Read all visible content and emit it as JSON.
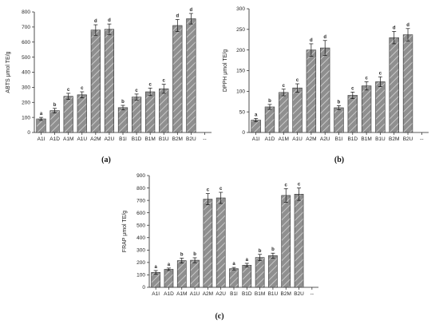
{
  "chart_data": [
    {
      "type": "bar",
      "panel_label": "(a)",
      "ylabel": "ABTS μmol TE/g",
      "xlabel": "",
      "ylim": [
        0,
        800
      ],
      "yticks": [
        0,
        100,
        200,
        300,
        400,
        500,
        600,
        700,
        800
      ],
      "categories": [
        "A1I",
        "A1D",
        "A1M",
        "A1U",
        "A2M",
        "A2U",
        "B1I",
        "B1D",
        "B1M",
        "B1U",
        "B2M",
        "B2U"
      ],
      "trailing_tick_label": "--",
      "values": [
        90,
        145,
        240,
        250,
        680,
        685,
        165,
        235,
        270,
        290,
        710,
        755
      ],
      "errors": [
        10,
        15,
        20,
        20,
        35,
        35,
        15,
        20,
        25,
        30,
        40,
        35
      ],
      "significance": [
        "a",
        "b",
        "c",
        "c",
        "d",
        "d",
        "b",
        "c",
        "c",
        "c",
        "d",
        "d"
      ],
      "grid": false
    },
    {
      "type": "bar",
      "panel_label": "(b)",
      "ylabel": "DPPH μmol TE/g",
      "xlabel": "",
      "ylim": [
        0,
        300
      ],
      "yticks": [
        0,
        50,
        100,
        150,
        200,
        250,
        300
      ],
      "categories": [
        "A1I",
        "A1D",
        "A1M",
        "A1U",
        "A2M",
        "A2U",
        "B1I",
        "B1D",
        "B1M",
        "B1U",
        "B2M",
        "B2U"
      ],
      "trailing_tick_label": "--",
      "values": [
        30,
        62,
        97,
        108,
        200,
        205,
        60,
        90,
        113,
        123,
        230,
        237
      ],
      "errors": [
        4,
        6,
        8,
        10,
        15,
        18,
        5,
        8,
        10,
        12,
        15,
        15
      ],
      "significance": [
        "a",
        "b",
        "c",
        "c",
        "d",
        "d",
        "b",
        "c",
        "c",
        "c",
        "d",
        "d"
      ],
      "grid": false
    },
    {
      "type": "bar",
      "panel_label": "(c)",
      "ylabel": "FRAP μmol TE/g",
      "xlabel": "",
      "ylim": [
        0,
        900
      ],
      "yticks": [
        0,
        100,
        200,
        300,
        400,
        500,
        600,
        700,
        800,
        900
      ],
      "categories": [
        "A1I",
        "A1D",
        "A1M",
        "A1U",
        "A2M",
        "A2U",
        "B1I",
        "B1D",
        "B1M",
        "B1U",
        "B2M",
        "B2U"
      ],
      "trailing_tick_label": "--",
      "values": [
        120,
        145,
        215,
        218,
        710,
        720,
        150,
        178,
        240,
        255,
        740,
        750
      ],
      "errors": [
        15,
        10,
        20,
        20,
        45,
        45,
        10,
        15,
        25,
        20,
        55,
        50
      ],
      "significance": [
        "a",
        "a",
        "b",
        "b",
        "c",
        "c",
        "a",
        "a",
        "b",
        "b",
        "c",
        "c"
      ],
      "grid": false
    }
  ]
}
